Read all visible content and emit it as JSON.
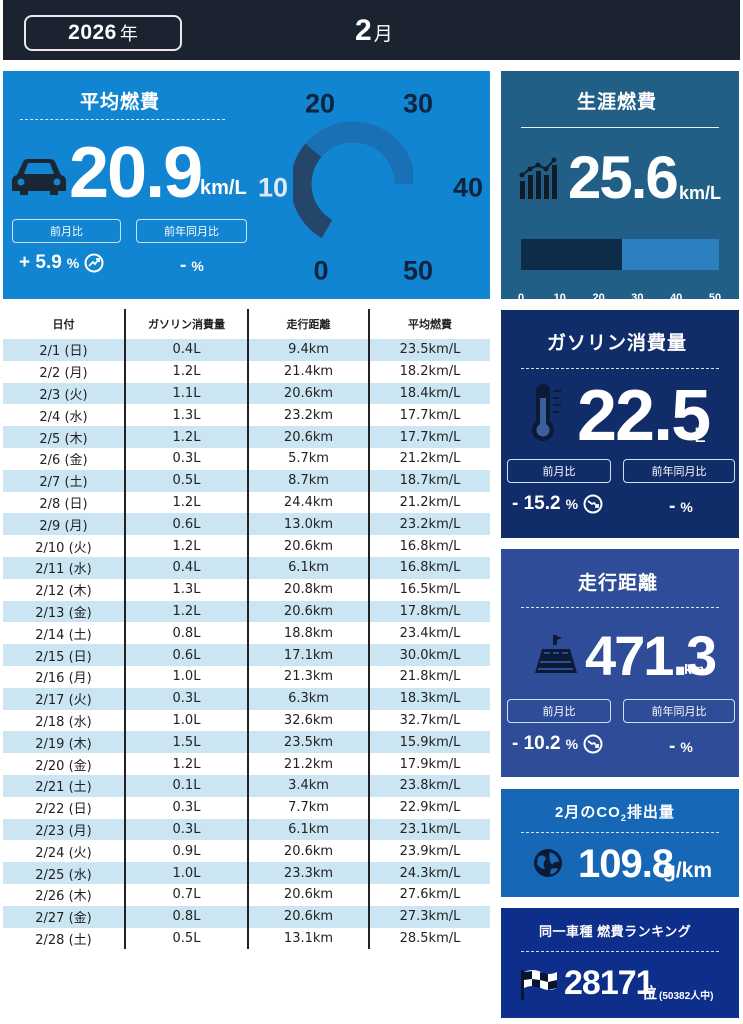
{
  "header": {
    "year": "2026",
    "year_unit": "年",
    "month": "2",
    "month_unit": "月"
  },
  "avg_fuel": {
    "title": "平均燃費",
    "value": "20.9",
    "unit": "km/L",
    "mom_label": "前月比",
    "yoy_label": "前年同月比",
    "mom_value": "+ 5.9",
    "mom_pct": "%",
    "yoy_value": "-",
    "yoy_pct": "%",
    "gauge": {
      "labels": [
        "0",
        "10",
        "20",
        "30",
        "40",
        "50"
      ],
      "max": 50,
      "level": 20.9
    }
  },
  "lifetime_fuel": {
    "title": "生涯燃費",
    "value": "25.6",
    "unit": "km/L",
    "ticks": [
      "0",
      "10",
      "20",
      "30",
      "40",
      "50"
    ],
    "bar_max": 50,
    "bar_value": 25.6
  },
  "gasoline": {
    "title": "ガソリン消費量",
    "value": "22.5",
    "unit": "L",
    "mom_label": "前月比",
    "yoy_label": "前年同月比",
    "mom_value": "- 15.2",
    "mom_pct": "%",
    "yoy_value": "-",
    "yoy_pct": "%"
  },
  "distance": {
    "title": "走行距離",
    "value": "471.3",
    "unit": "km",
    "mom_label": "前月比",
    "yoy_label": "前年同月比",
    "mom_value": "- 10.2",
    "mom_pct": "%",
    "yoy_value": "-",
    "yoy_pct": "%"
  },
  "co2": {
    "title_prefix": "2月のCO",
    "title_sub": "2",
    "title_suffix": "排出量",
    "value": "109.8",
    "unit": "g/km"
  },
  "ranking": {
    "title": "同一車種 燃費ランキング",
    "value": "28171",
    "unit": "位",
    "note": "(50382人中)"
  },
  "table": {
    "headers": [
      "日付",
      "ガソリン消費量",
      "走行距離",
      "平均燃費"
    ],
    "rows": [
      [
        "2/1 (日)",
        "0.4L",
        "9.4km",
        "23.5km/L"
      ],
      [
        "2/2 (月)",
        "1.2L",
        "21.4km",
        "18.2km/L"
      ],
      [
        "2/3 (火)",
        "1.1L",
        "20.6km",
        "18.4km/L"
      ],
      [
        "2/4 (水)",
        "1.3L",
        "23.2km",
        "17.7km/L"
      ],
      [
        "2/5 (木)",
        "1.2L",
        "20.6km",
        "17.7km/L"
      ],
      [
        "2/6 (金)",
        "0.3L",
        "5.7km",
        "21.2km/L"
      ],
      [
        "2/7 (土)",
        "0.5L",
        "8.7km",
        "18.7km/L"
      ],
      [
        "2/8 (日)",
        "1.2L",
        "24.4km",
        "21.2km/L"
      ],
      [
        "2/9 (月)",
        "0.6L",
        "13.0km",
        "23.2km/L"
      ],
      [
        "2/10 (火)",
        "1.2L",
        "20.6km",
        "16.8km/L"
      ],
      [
        "2/11 (水)",
        "0.4L",
        "6.1km",
        "16.8km/L"
      ],
      [
        "2/12 (木)",
        "1.3L",
        "20.8km",
        "16.5km/L"
      ],
      [
        "2/13 (金)",
        "1.2L",
        "20.6km",
        "17.8km/L"
      ],
      [
        "2/14 (土)",
        "0.8L",
        "18.8km",
        "23.4km/L"
      ],
      [
        "2/15 (日)",
        "0.6L",
        "17.1km",
        "30.0km/L"
      ],
      [
        "2/16 (月)",
        "1.0L",
        "21.3km",
        "21.8km/L"
      ],
      [
        "2/17 (火)",
        "0.3L",
        "6.3km",
        "18.3km/L"
      ],
      [
        "2/18 (水)",
        "1.0L",
        "32.6km",
        "32.7km/L"
      ],
      [
        "2/19 (木)",
        "1.5L",
        "23.5km",
        "15.9km/L"
      ],
      [
        "2/20 (金)",
        "1.2L",
        "21.2km",
        "17.9km/L"
      ],
      [
        "2/21 (土)",
        "0.1L",
        "3.4km",
        "23.8km/L"
      ],
      [
        "2/22 (日)",
        "0.3L",
        "7.7km",
        "22.9km/L"
      ],
      [
        "2/23 (月)",
        "0.3L",
        "6.1km",
        "23.1km/L"
      ],
      [
        "2/24 (火)",
        "0.9L",
        "20.6km",
        "23.9km/L"
      ],
      [
        "2/25 (水)",
        "1.0L",
        "23.3km",
        "24.3km/L"
      ],
      [
        "2/26 (木)",
        "0.7L",
        "20.6km",
        "27.6km/L"
      ],
      [
        "2/27 (金)",
        "0.8L",
        "20.6km",
        "27.3km/L"
      ],
      [
        "2/28 (土)",
        "0.5L",
        "13.1km",
        "28.5km/L"
      ]
    ]
  },
  "colors": {
    "topbar": "#1b2330",
    "avg_panel": "#1185d1",
    "life_panel": "#215f86",
    "gas_panel": "#102c69",
    "dist_panel": "#2e4c97",
    "co2_panel": "#1668b6",
    "rank_panel": "#0e2e8b",
    "gauge_track": "#1a70b5",
    "gauge_fill": "#24466b",
    "row_stripe": "#cbe6f2"
  },
  "icons": {
    "avg": "car-icon",
    "life": "bar-chart-icon",
    "gas": "thermometer-icon",
    "dist": "road-icon",
    "co2": "globe-icon",
    "rank": "checkered-flag-icon",
    "trend_up": "trend-up-icon",
    "trend_down": "trend-down-icon"
  }
}
